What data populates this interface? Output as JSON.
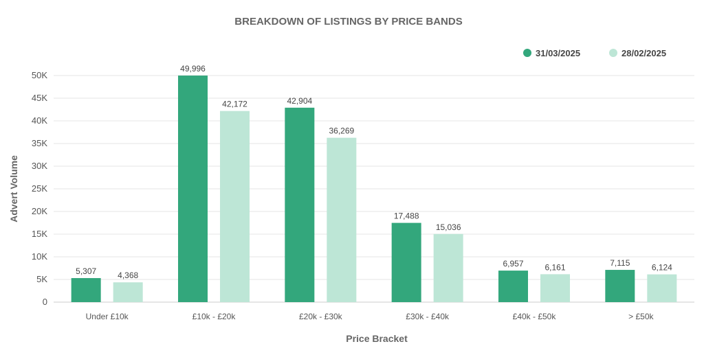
{
  "chart_data": {
    "type": "bar",
    "title": "BREAKDOWN OF LISTINGS BY PRICE BANDS",
    "xlabel": "Price Bracket",
    "ylabel": "Advert Volume",
    "categories": [
      "Under £10k",
      "£10k - £20k",
      "£20k - £30k",
      "£30k - £40k",
      "£40k - £50k",
      "> £50k"
    ],
    "series": [
      {
        "name": "31/03/2025",
        "color": "#33a77c",
        "values": [
          5307,
          49996,
          42904,
          17488,
          6957,
          7115
        ],
        "labels": [
          "5,307",
          "49,996",
          "42,904",
          "17,488",
          "6,957",
          "7,115"
        ]
      },
      {
        "name": "28/02/2025",
        "color": "#bde6d6",
        "values": [
          4368,
          42172,
          36269,
          15036,
          6161,
          6124
        ],
        "labels": [
          "4,368",
          "42,172",
          "36,269",
          "15,036",
          "6,161",
          "6,124"
        ]
      }
    ],
    "ylim": [
      0,
      50000
    ],
    "yticks": [
      0,
      5000,
      10000,
      15000,
      20000,
      25000,
      30000,
      35000,
      40000,
      45000,
      50000
    ],
    "ytick_labels": [
      "0",
      "5K",
      "10K",
      "15K",
      "20K",
      "25K",
      "30K",
      "35K",
      "40K",
      "45K",
      "50K"
    ],
    "grid": true,
    "legend_position": "top-right"
  }
}
